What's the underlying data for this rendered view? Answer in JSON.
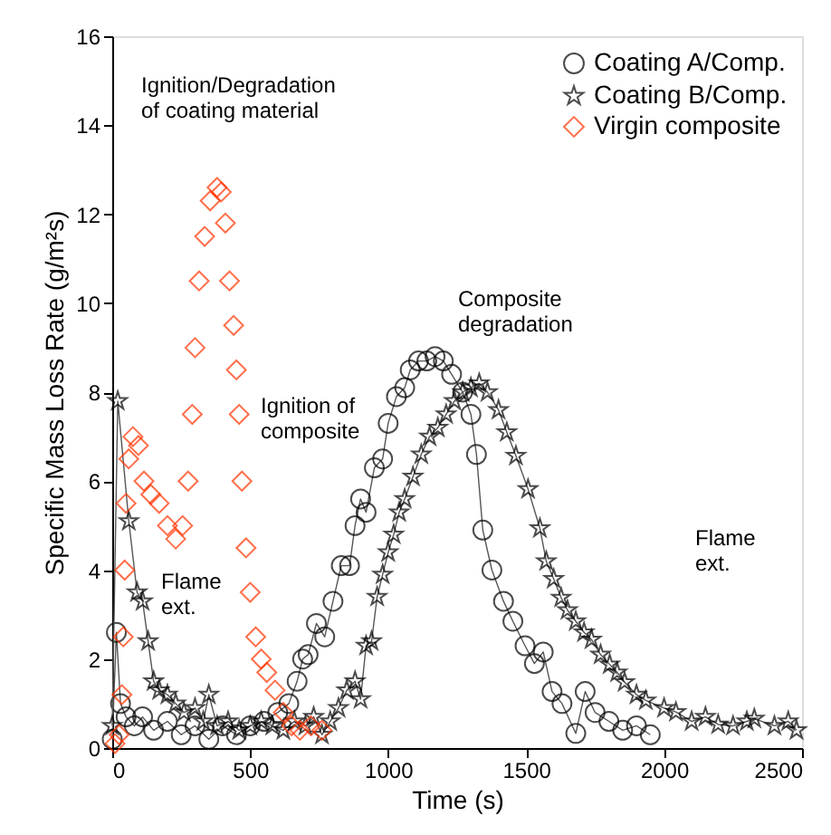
{
  "chart_data": {
    "type": "line",
    "xlabel": "Time (s)",
    "ylabel": "Specific Mass Loss Rate (g/m²s)",
    "xlim": [
      0,
      2500
    ],
    "xticks": [
      0,
      500,
      {
        "value": 1000,
        "label": "1000"
      },
      {
        "value": 1500,
        "label": "1500"
      },
      {
        "value": 2000,
        "label": "2000"
      },
      {
        "value": 2500,
        "label": "2500"
      }
    ],
    "ylim": [
      0,
      16
    ],
    "yticks": [
      0,
      2,
      4,
      6,
      8,
      10,
      12,
      14,
      16
    ],
    "grid": false,
    "legend": "top right",
    "series": [
      {
        "name": "Coating A/Comp.",
        "marker": "circle",
        "color": "#000000",
        "x": [
          0,
          15,
          30,
          50,
          80,
          110,
          150,
          200,
          250,
          300,
          350,
          400,
          450,
          500,
          550,
          600,
          640,
          670,
          690,
          710,
          740,
          770,
          800,
          830,
          860,
          880,
          900,
          920,
          950,
          980,
          1000,
          1030,
          1060,
          1080,
          1110,
          1140,
          1170,
          1200,
          1230,
          1270,
          1300,
          1320,
          1343,
          1376,
          1418,
          1452,
          1496,
          1530,
          1562,
          1594,
          1630,
          1680,
          1714,
          1750,
          1800,
          1850,
          1900,
          1950
        ],
        "values": [
          0.2,
          2.6,
          1.0,
          0.7,
          0.5,
          0.7,
          0.4,
          0.6,
          0.3,
          0.5,
          0.2,
          0.5,
          0.3,
          0.5,
          0.6,
          0.8,
          1.0,
          1.5,
          2.0,
          2.1,
          2.8,
          2.5,
          3.3,
          4.1,
          4.1,
          5.0,
          5.6,
          5.3,
          6.3,
          6.5,
          7.3,
          7.9,
          8.1,
          8.5,
          8.7,
          8.7,
          8.8,
          8.7,
          8.4,
          8.0,
          7.5,
          6.6,
          4.9,
          4.0,
          3.3,
          2.85,
          2.3,
          1.9,
          2.16,
          1.27,
          1.0,
          0.33,
          1.27,
          0.8,
          0.6,
          0.4,
          0.5,
          0.3
        ]
      },
      {
        "name": "Coating B/Comp.",
        "marker": "star",
        "color": "#000000",
        "x": [
          0,
          20,
          60,
          90,
          110,
          130,
          150,
          170,
          200,
          230,
          260,
          300,
          330,
          350,
          380,
          420,
          460,
          500,
          540,
          580,
          620,
          660,
          700,
          730,
          760,
          790,
          820,
          850,
          880,
          900,
          920,
          940,
          960,
          980,
          1000,
          1020,
          1040,
          1060,
          1090,
          1120,
          1150,
          1180,
          1210,
          1240,
          1270,
          1300,
          1330,
          1360,
          1400,
          1430,
          1463,
          1507,
          1550,
          1573,
          1600,
          1627,
          1650,
          1680,
          1710,
          1737,
          1770,
          1803,
          1830,
          1857,
          1900,
          1934,
          2000,
          2043,
          2100,
          2150,
          2196,
          2250,
          2300,
          2327,
          2400,
          2450,
          2480
        ],
        "values": [
          0.5,
          7.8,
          5.1,
          3.5,
          3.3,
          2.4,
          1.5,
          1.3,
          1.2,
          1.0,
          0.8,
          0.9,
          0.6,
          1.2,
          0.5,
          0.6,
          0.4,
          0.5,
          0.6,
          0.5,
          0.4,
          0.6,
          0.5,
          0.7,
          0.3,
          0.6,
          0.9,
          1.3,
          1.5,
          1.1,
          2.3,
          2.4,
          3.4,
          3.9,
          4.4,
          4.8,
          5.3,
          5.6,
          6.1,
          6.6,
          7.0,
          7.2,
          7.5,
          7.8,
          8.0,
          8.1,
          8.2,
          8.0,
          7.6,
          7.1,
          6.57,
          5.82,
          4.94,
          4.2,
          3.8,
          3.38,
          3.1,
          2.85,
          2.6,
          2.44,
          2.1,
          1.88,
          1.7,
          1.48,
          1.2,
          1.07,
          0.9,
          0.81,
          0.6,
          0.7,
          0.53,
          0.5,
          0.6,
          0.66,
          0.5,
          0.6,
          0.4
        ]
      },
      {
        "name": "Virgin composite",
        "type": "scatter",
        "marker": "diamond",
        "color": "#ff3300",
        "x": [
          10,
          25,
          35,
          40,
          45,
          50,
          60,
          75,
          95,
          115,
          140,
          170,
          200,
          230,
          255,
          275,
          290,
          300,
          315,
          335,
          355,
          380,
          395,
          410,
          425,
          440,
          450,
          460,
          470,
          485,
          500,
          520,
          540,
          560,
          590,
          620,
          650,
          680,
          720,
          760
        ],
        "values": [
          0.1,
          0.3,
          1.2,
          2.5,
          4,
          5.5,
          6.5,
          7,
          6.8,
          6,
          5.7,
          5.5,
          5,
          4.7,
          5,
          6,
          7.5,
          9,
          10.5,
          11.5,
          12.3,
          12.6,
          12.5,
          11.8,
          10.5,
          9.5,
          8.5,
          7.5,
          6,
          4.5,
          3.5,
          2.5,
          2,
          1.7,
          1.3,
          0.8,
          0.5,
          0.4,
          0.5,
          0.4
        ]
      }
    ],
    "annotations": [
      "Ignition/Degradation\nof coating material",
      "Ignition of\ncomposite",
      "Composite\ndegradation",
      "Flame\next.",
      "Flame\next."
    ]
  }
}
